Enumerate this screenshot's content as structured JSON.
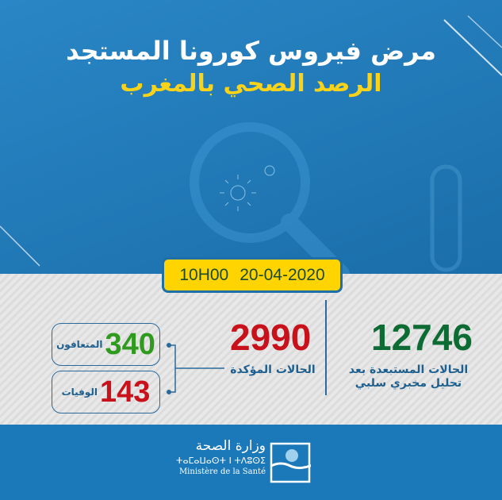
{
  "header": {
    "title_line1": "مرض فيروس كورونا المستجد",
    "title_line2": "الرصد الصحي بالمغرب"
  },
  "date_badge": {
    "time": "10H00",
    "date": "20-04-2020"
  },
  "stats": {
    "excluded": {
      "value": "12746",
      "label_line1": "الحالات المستبعدة بعد",
      "label_line2": "تحليل مخبري سلبي",
      "color": "#0d6b34"
    },
    "confirmed": {
      "value": "2990",
      "label": "الحالات المؤكدة",
      "color": "#c8111a"
    },
    "recovered": {
      "value": "340",
      "label": "المتعافون",
      "color": "#2f9a1d"
    },
    "deaths": {
      "value": "143",
      "label": "الوفيات",
      "color": "#c8111a"
    }
  },
  "footer": {
    "ministry_ar": "وزارة الصحة",
    "ministry_tifinagh": "ⵜⴰⵎⴰⵡⴰⵙⵜ ⵏ ⵜⴷⵓⵙⵉ",
    "ministry_fr": "Ministère de la Santé"
  },
  "colors": {
    "blue": "#1f78b8",
    "yellow": "#ffd400",
    "title_yellow": "#f8d31a"
  }
}
